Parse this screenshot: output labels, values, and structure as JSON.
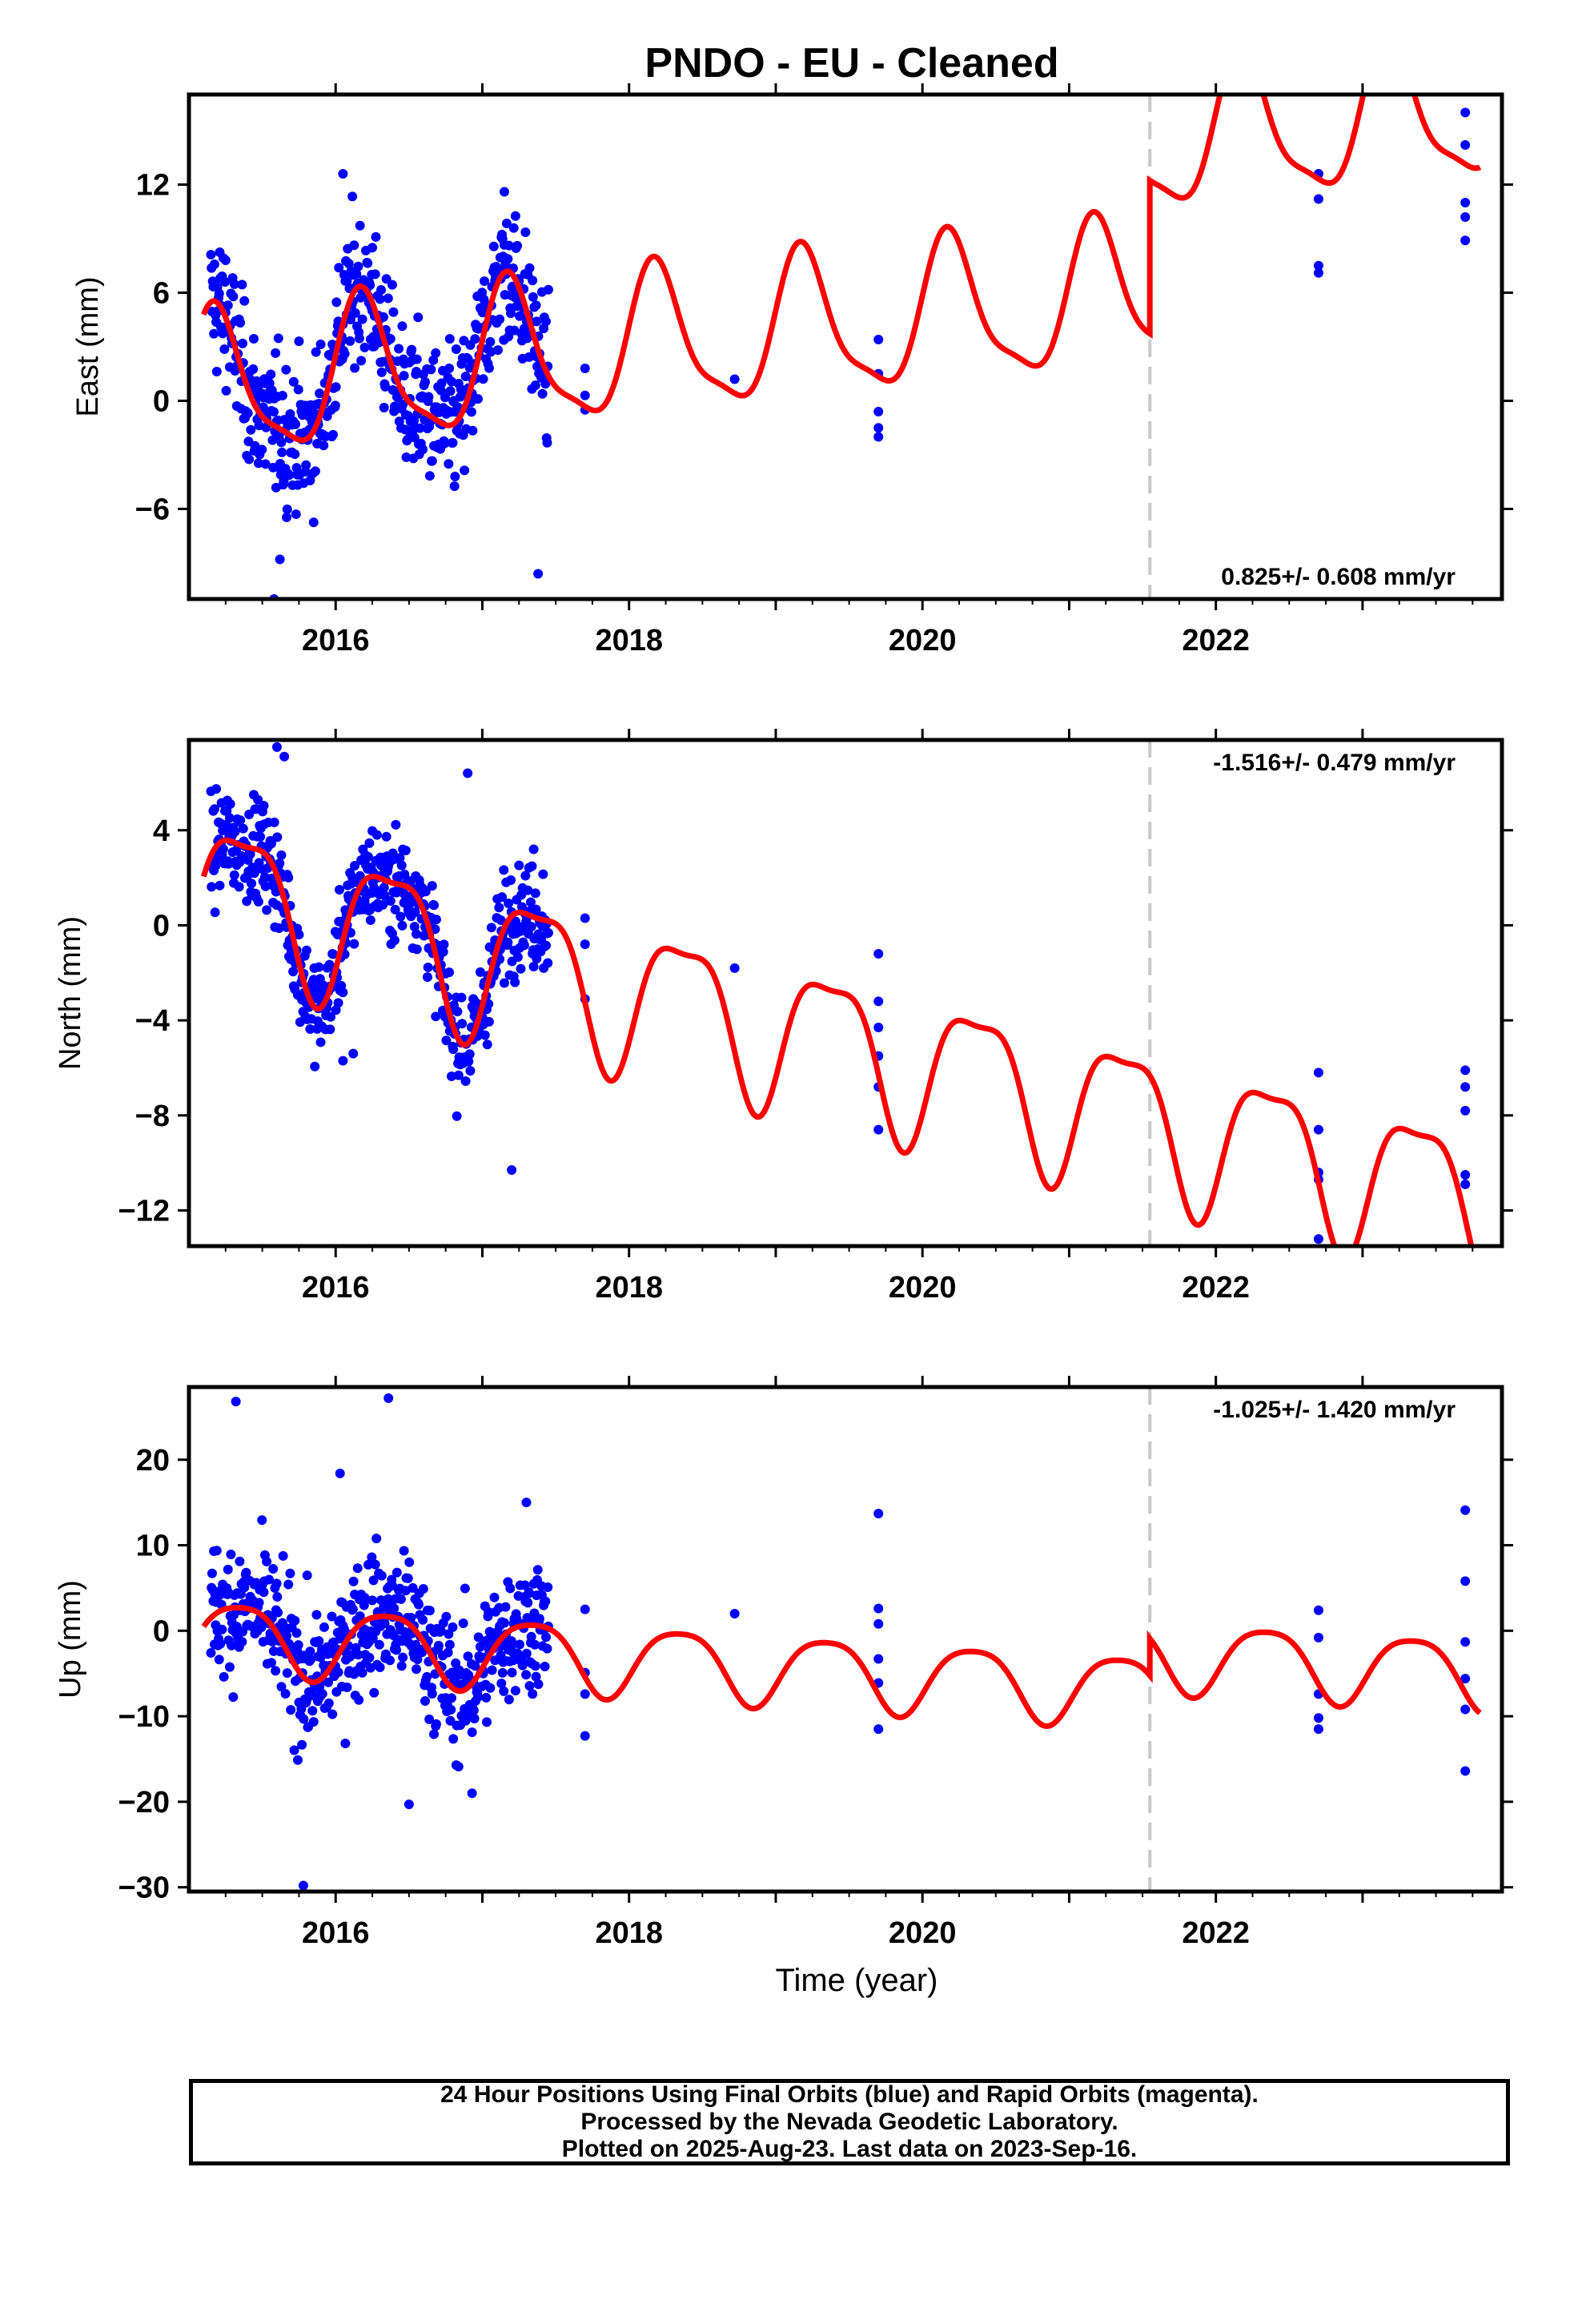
{
  "title": "PNDO  - EU - Cleaned",
  "xlabel": "Time (year)",
  "footer": {
    "line1": "24 Hour Positions Using Final Orbits (blue) and Rapid Orbits (magenta).",
    "line2": "Processed by the Nevada Geodetic Laboratory.",
    "line3": "Plotted on 2025-Aug-23. Last data on 2023-Sep-16."
  },
  "colors": {
    "final_orbits": "#0000ff",
    "model_fit": "#ff0000",
    "equipment_change": "#c8c8c8"
  },
  "chart_data": [
    {
      "type": "scatter",
      "panel": "east",
      "ylabel": "East (mm)",
      "rate_text": "0.825+/- 0.608 mm/yr",
      "rate_position": "bottom-right",
      "xlim": [
        2015.0,
        2023.95
      ],
      "ylim": [
        -11,
        17
      ],
      "x_ticks": [
        2016,
        2018,
        2020,
        2022
      ],
      "y_ticks": [
        -6,
        0,
        6,
        12
      ],
      "equipment_change_year": 2021.55,
      "observations_outside_dense_period": [
        {
          "x": 2017.7,
          "y": 1.8
        },
        {
          "x": 2017.7,
          "y": 0.3
        },
        {
          "x": 2017.7,
          "y": -0.5
        },
        {
          "x": 2018.72,
          "y": 1.2
        },
        {
          "x": 2019.7,
          "y": 3.4
        },
        {
          "x": 2019.7,
          "y": 1.5
        },
        {
          "x": 2019.7,
          "y": -0.6
        },
        {
          "x": 2019.7,
          "y": -1.5
        },
        {
          "x": 2019.7,
          "y": -2.0
        },
        {
          "x": 2022.7,
          "y": 12.6
        },
        {
          "x": 2022.7,
          "y": 11.2
        },
        {
          "x": 2022.7,
          "y": 7.5
        },
        {
          "x": 2022.7,
          "y": 7.1
        },
        {
          "x": 2023.7,
          "y": 16.0
        },
        {
          "x": 2023.7,
          "y": 14.2
        },
        {
          "x": 2023.7,
          "y": 11.0
        },
        {
          "x": 2023.7,
          "y": 10.2
        },
        {
          "x": 2023.7,
          "y": 8.9
        }
      ],
      "dense_period": {
        "start": 2015.15,
        "end": 2017.45,
        "spread_mm": 2.8,
        "outliers": [
          {
            "x": 2015.25,
            "y": 7.8
          },
          {
            "x": 2015.58,
            "y": -11.0
          },
          {
            "x": 2015.62,
            "y": -8.8
          },
          {
            "x": 2016.05,
            "y": 12.6
          },
          {
            "x": 2016.25,
            "y": 8.5
          },
          {
            "x": 2017.15,
            "y": 11.6
          },
          {
            "x": 2017.38,
            "y": -9.6
          }
        ]
      },
      "model": {
        "rate": 0.825,
        "intercepts": [
          {
            "from": 2015.1,
            "to": 2021.55,
            "value": 0.6
          },
          {
            "from": 2021.55,
            "to": 2023.8,
            "value": 9.1
          }
        ],
        "model_ref_year": 2015.1,
        "sin": 3.6,
        "cos": 1.5,
        "sin2": 1.0,
        "cos2": -0.3
      }
    },
    {
      "type": "scatter",
      "panel": "north",
      "ylabel": "North (mm)",
      "rate_text": "-1.516+/- 0.479 mm/yr",
      "rate_position": "top-right",
      "xlim": [
        2015.0,
        2023.95
      ],
      "ylim": [
        -13.5,
        7.8
      ],
      "x_ticks": [
        2016,
        2018,
        2020,
        2022
      ],
      "y_ticks": [
        -12,
        -8,
        -4,
        0,
        4
      ],
      "equipment_change_year": 2021.55,
      "observations_outside_dense_period": [
        {
          "x": 2017.7,
          "y": 0.3
        },
        {
          "x": 2017.7,
          "y": -0.8
        },
        {
          "x": 2017.7,
          "y": -3.1
        },
        {
          "x": 2018.72,
          "y": -1.8
        },
        {
          "x": 2019.7,
          "y": -1.2
        },
        {
          "x": 2019.7,
          "y": -3.2
        },
        {
          "x": 2019.7,
          "y": -4.3
        },
        {
          "x": 2019.7,
          "y": -5.5
        },
        {
          "x": 2019.7,
          "y": -6.8
        },
        {
          "x": 2019.7,
          "y": -8.6
        },
        {
          "x": 2022.7,
          "y": -6.2
        },
        {
          "x": 2022.7,
          "y": -8.6
        },
        {
          "x": 2022.7,
          "y": -10.4
        },
        {
          "x": 2022.7,
          "y": -10.7
        },
        {
          "x": 2022.7,
          "y": -13.2
        },
        {
          "x": 2023.7,
          "y": -6.1
        },
        {
          "x": 2023.7,
          "y": -6.8
        },
        {
          "x": 2023.7,
          "y": -7.8
        },
        {
          "x": 2023.7,
          "y": -10.5
        },
        {
          "x": 2023.7,
          "y": -10.9
        }
      ],
      "dense_period": {
        "start": 2015.15,
        "end": 2017.45,
        "spread_mm": 1.5,
        "outliers": [
          {
            "x": 2015.6,
            "y": 7.5
          },
          {
            "x": 2015.65,
            "y": 7.1
          },
          {
            "x": 2016.05,
            "y": -5.7
          },
          {
            "x": 2016.12,
            "y": -5.4
          },
          {
            "x": 2016.9,
            "y": 6.4
          },
          {
            "x": 2017.2,
            "y": -10.3
          },
          {
            "x": 2017.35,
            "y": 3.2
          }
        ]
      },
      "model": {
        "rate": -1.516,
        "intercepts": [
          {
            "from": 2015.1,
            "to": 2023.8,
            "value": 1.6
          }
        ],
        "model_ref_year": 2015.1,
        "sin": 2.2,
        "cos": -2.1,
        "sin2": 0.9,
        "cos2": 0.0
      }
    },
    {
      "type": "scatter",
      "panel": "up",
      "ylabel": "Up (mm)",
      "rate_text": "-1.025+/- 1.420 mm/yr",
      "rate_position": "top-right",
      "xlim": [
        2015.0,
        2023.95
      ],
      "ylim": [
        -30.5,
        28.5
      ],
      "x_ticks": [
        2016,
        2018,
        2020,
        2022
      ],
      "y_ticks": [
        -30,
        -20,
        -10,
        0,
        10,
        20
      ],
      "equipment_change_year": 2021.55,
      "observations_outside_dense_period": [
        {
          "x": 2017.7,
          "y": 2.5
        },
        {
          "x": 2017.7,
          "y": -4.9
        },
        {
          "x": 2017.7,
          "y": -7.4
        },
        {
          "x": 2017.7,
          "y": -12.3
        },
        {
          "x": 2018.72,
          "y": 2.0
        },
        {
          "x": 2019.7,
          "y": 13.7
        },
        {
          "x": 2019.7,
          "y": 2.6
        },
        {
          "x": 2019.7,
          "y": 0.8
        },
        {
          "x": 2019.7,
          "y": -3.3
        },
        {
          "x": 2019.7,
          "y": -6.1
        },
        {
          "x": 2019.7,
          "y": -11.5
        },
        {
          "x": 2022.7,
          "y": 2.4
        },
        {
          "x": 2022.7,
          "y": -0.8
        },
        {
          "x": 2022.7,
          "y": -7.4
        },
        {
          "x": 2022.7,
          "y": -10.2
        },
        {
          "x": 2022.7,
          "y": -11.5
        },
        {
          "x": 2023.7,
          "y": 14.1
        },
        {
          "x": 2023.7,
          "y": 5.8
        },
        {
          "x": 2023.7,
          "y": -1.3
        },
        {
          "x": 2023.7,
          "y": -5.6
        },
        {
          "x": 2023.7,
          "y": -9.2
        },
        {
          "x": 2023.7,
          "y": -16.4
        }
      ],
      "dense_period": {
        "start": 2015.15,
        "end": 2017.45,
        "spread_mm": 5.5,
        "outliers": [
          {
            "x": 2015.32,
            "y": 26.8
          },
          {
            "x": 2015.78,
            "y": -29.8
          },
          {
            "x": 2016.03,
            "y": 18.4
          },
          {
            "x": 2016.36,
            "y": 27.2
          },
          {
            "x": 2016.5,
            "y": -20.3
          },
          {
            "x": 2016.93,
            "y": -19.0
          },
          {
            "x": 2017.3,
            "y": 15.0
          }
        ]
      },
      "model": {
        "rate": -1.025,
        "intercepts": [
          {
            "from": 2015.1,
            "to": 2021.55,
            "value": -0.4
          },
          {
            "from": 2021.55,
            "to": 2023.8,
            "value": 3.9
          }
        ],
        "model_ref_year": 2015.1,
        "sin": 3.4,
        "cos": -2.3,
        "sin2": 0.7,
        "cos2": 0.3
      }
    }
  ]
}
